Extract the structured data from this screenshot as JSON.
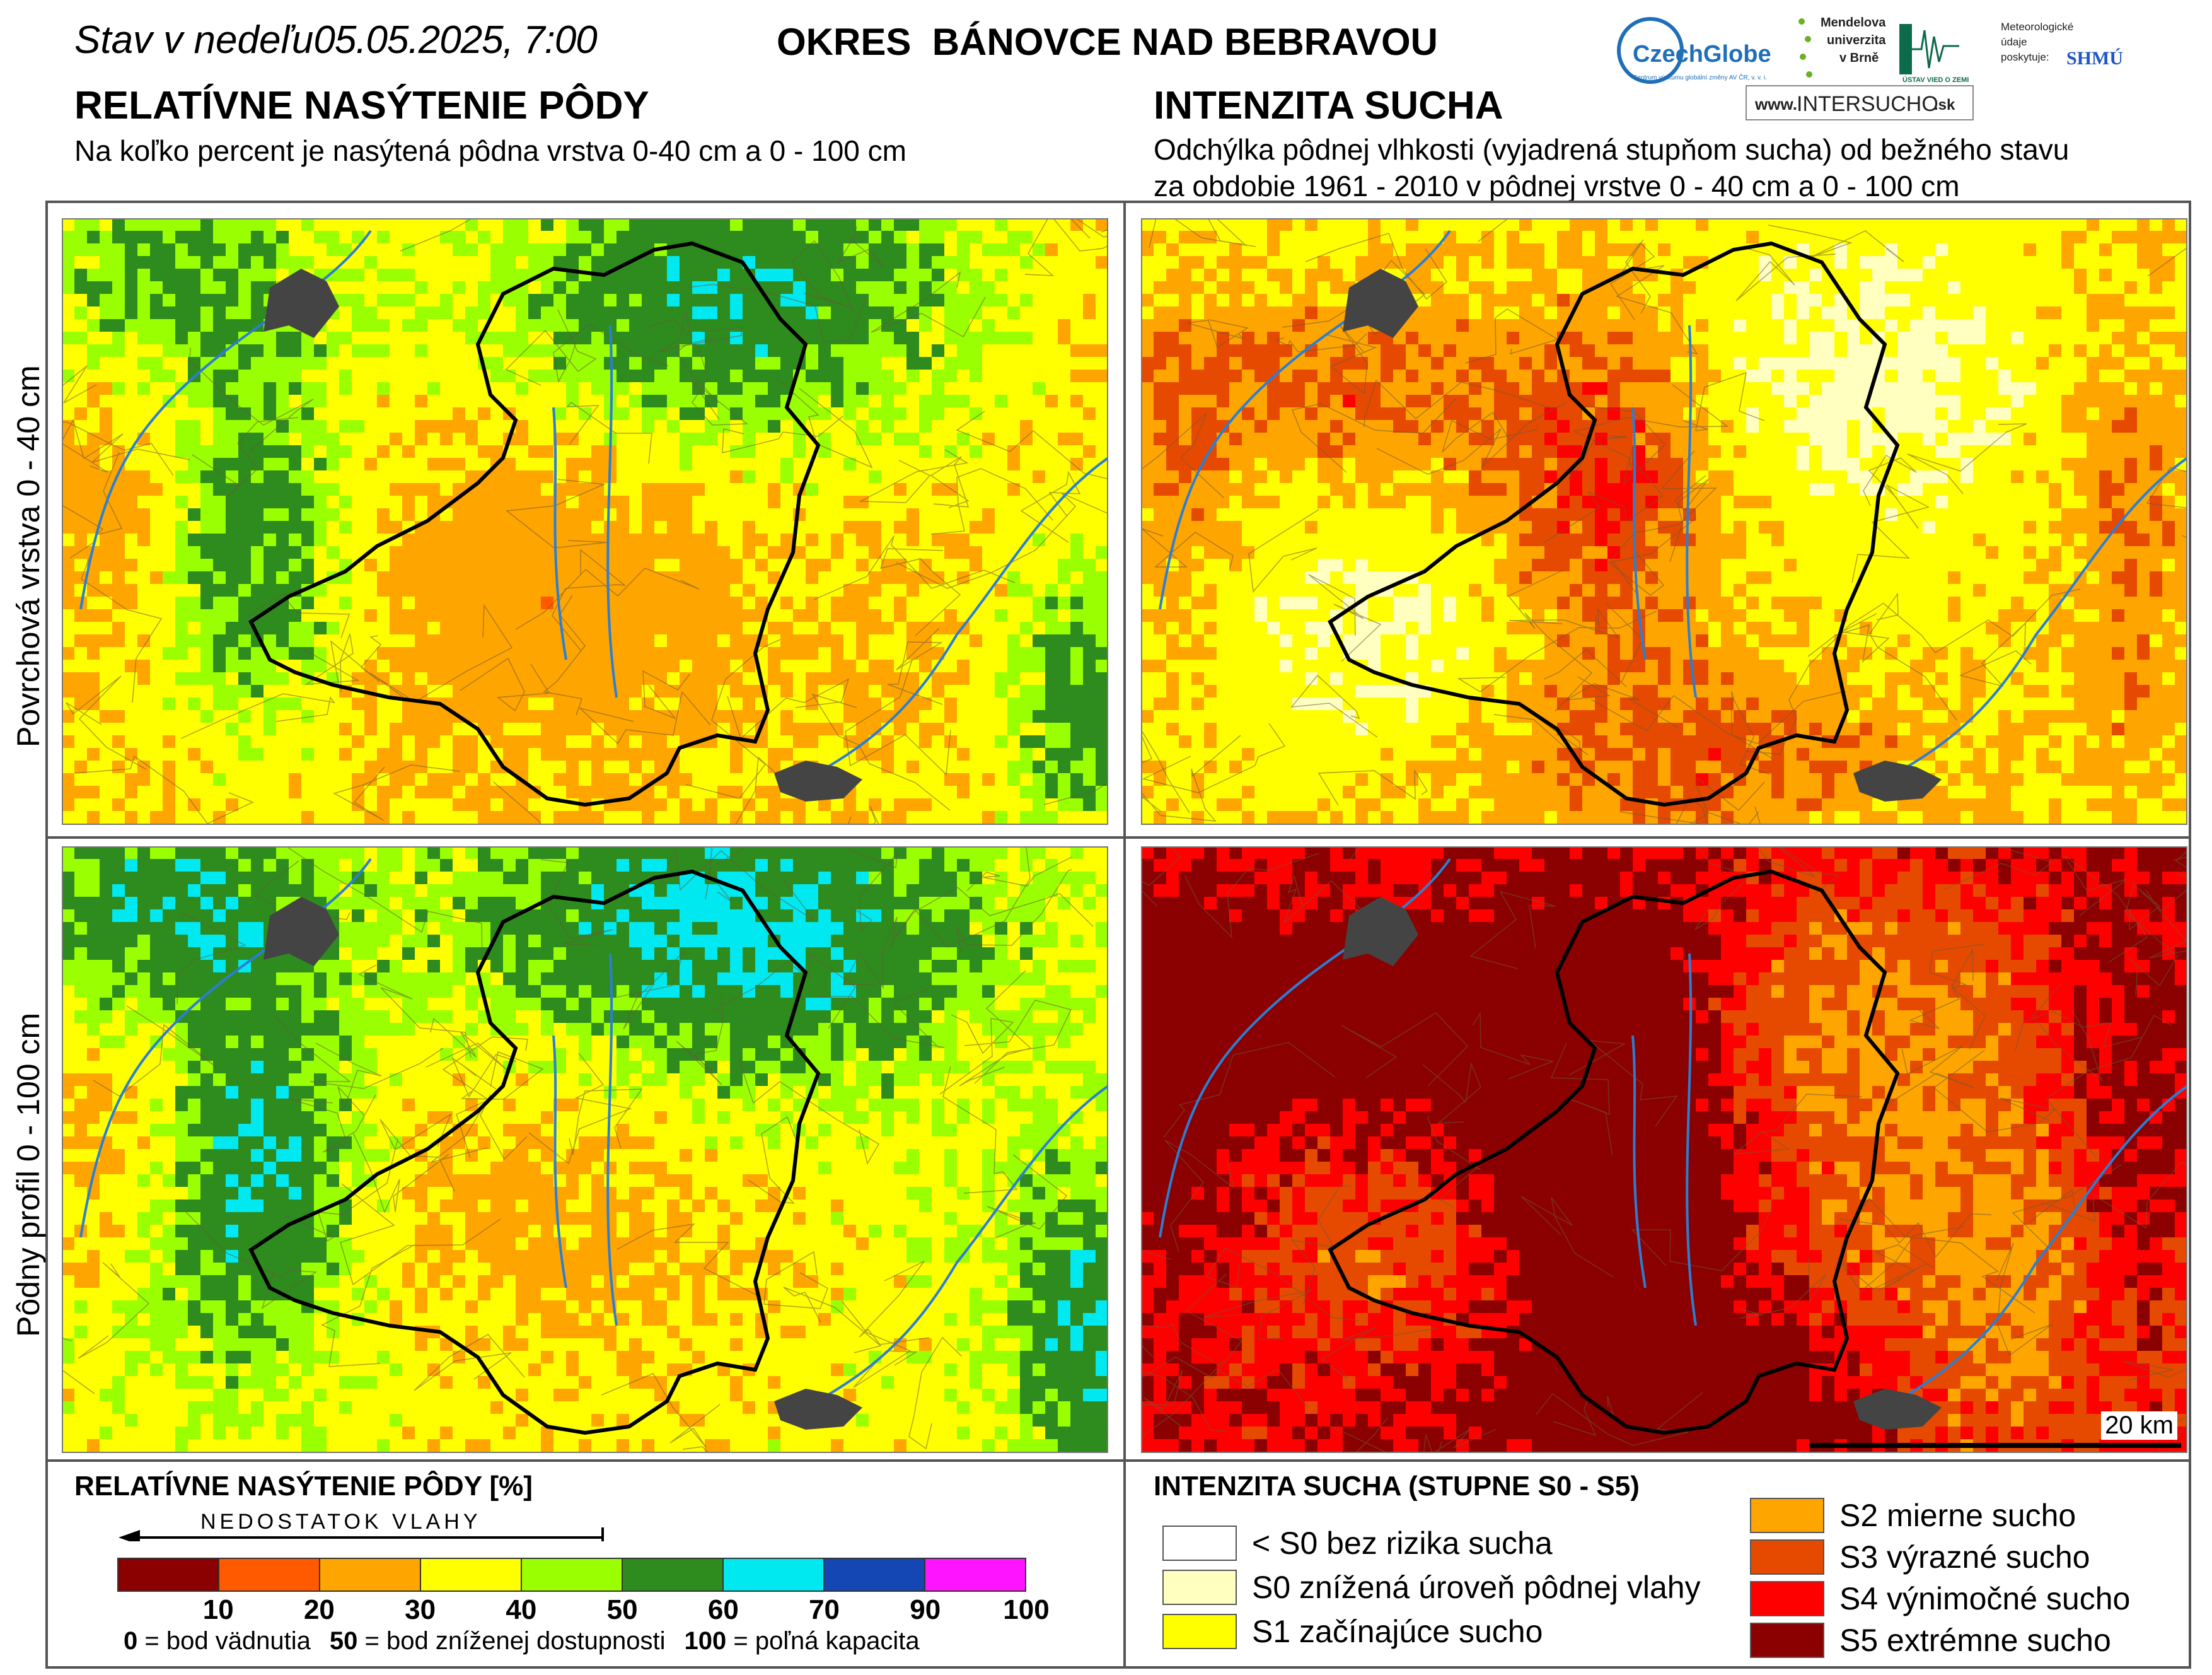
{
  "header": {
    "date_prefix": "Stav v nedeľu",
    "date_value": "05.05.2025, 7:00",
    "district": "OKRES  BÁNOVCE NAD BEBRAVOU"
  },
  "left_section": {
    "title": "RELATÍVNE NASÝTENIE PÔDY",
    "subtitle": "Na koľko percent je nasýtená pôdna vrstva 0-40 cm a 0 - 100 cm"
  },
  "right_section": {
    "title": "INTENZITA SUCHA",
    "subtitle_line1": "Odchýlka pôdnej vlhkosti (vyjadrená stupňom sucha) od bežného stavu",
    "subtitle_line2": "za obdobie 1961 - 2010 v pôdnej vrstve 0 - 40 cm a 0 - 100 cm"
  },
  "logos": {
    "czechglobe": "CzechGlobe",
    "czechglobe_sub": "Centrum výzkumu globální změny AV ČR, v. v. i.",
    "mendel": "Mendelova univerzita v Brně",
    "uvgz": "ÚSTAV VIED O ZEMI",
    "meteo_note": "Meteorologické údaje poskytuje:",
    "shmu": "SHMÚ",
    "intersucho_prefix": "www.",
    "intersucho_main": "INTERSUCHO",
    "intersucho_suffix": ".sk"
  },
  "row_labels": {
    "top": "Povrchová vrstva 0 - 40 cm",
    "bottom": "Pôdny profil 0 - 100 cm"
  },
  "scalebar": {
    "label": "20 km"
  },
  "saturation_legend": {
    "title": "RELATÍVNE NASÝTENIE PÔDY [%]",
    "arrow_label": "NEDOSTATOK VLAHY",
    "colors": [
      "#8b0000",
      "#ff5a00",
      "#ffa500",
      "#ffff00",
      "#9aff00",
      "#2e8b1e",
      "#00e8f0",
      "#1446b4",
      "#ff14ff"
    ],
    "ticks": [
      "10",
      "20",
      "30",
      "40",
      "50",
      "60",
      "70",
      "90",
      "100"
    ],
    "note_0_key": "0",
    "note_0_text": " = bod vädnutia",
    "note_50_key": "50",
    "note_50_text": " = bod zníženej dostupnosti",
    "note_100_key": "100",
    "note_100_text": " = poľná kapacita"
  },
  "drought_legend": {
    "title": "INTENZITA SUCHA (STUPNE S0 - S5)",
    "items": [
      {
        "label": "< S0 bez rizika sucha",
        "color": "#ffffff"
      },
      {
        "label": "S0 znížená úroveň pôdnej vlahy",
        "color": "#ffffc0"
      },
      {
        "label": "S1 začínajúce sucho",
        "color": "#ffff00"
      },
      {
        "label": "S2 mierne sucho",
        "color": "#ffa500"
      },
      {
        "label": "S3 výrazné sucho",
        "color": "#e64a00"
      },
      {
        "label": "S4 výnimočné sucho",
        "color": "#ff0000"
      },
      {
        "label": "S5 extrémne sucho",
        "color": "#8b0000"
      }
    ]
  }
}
